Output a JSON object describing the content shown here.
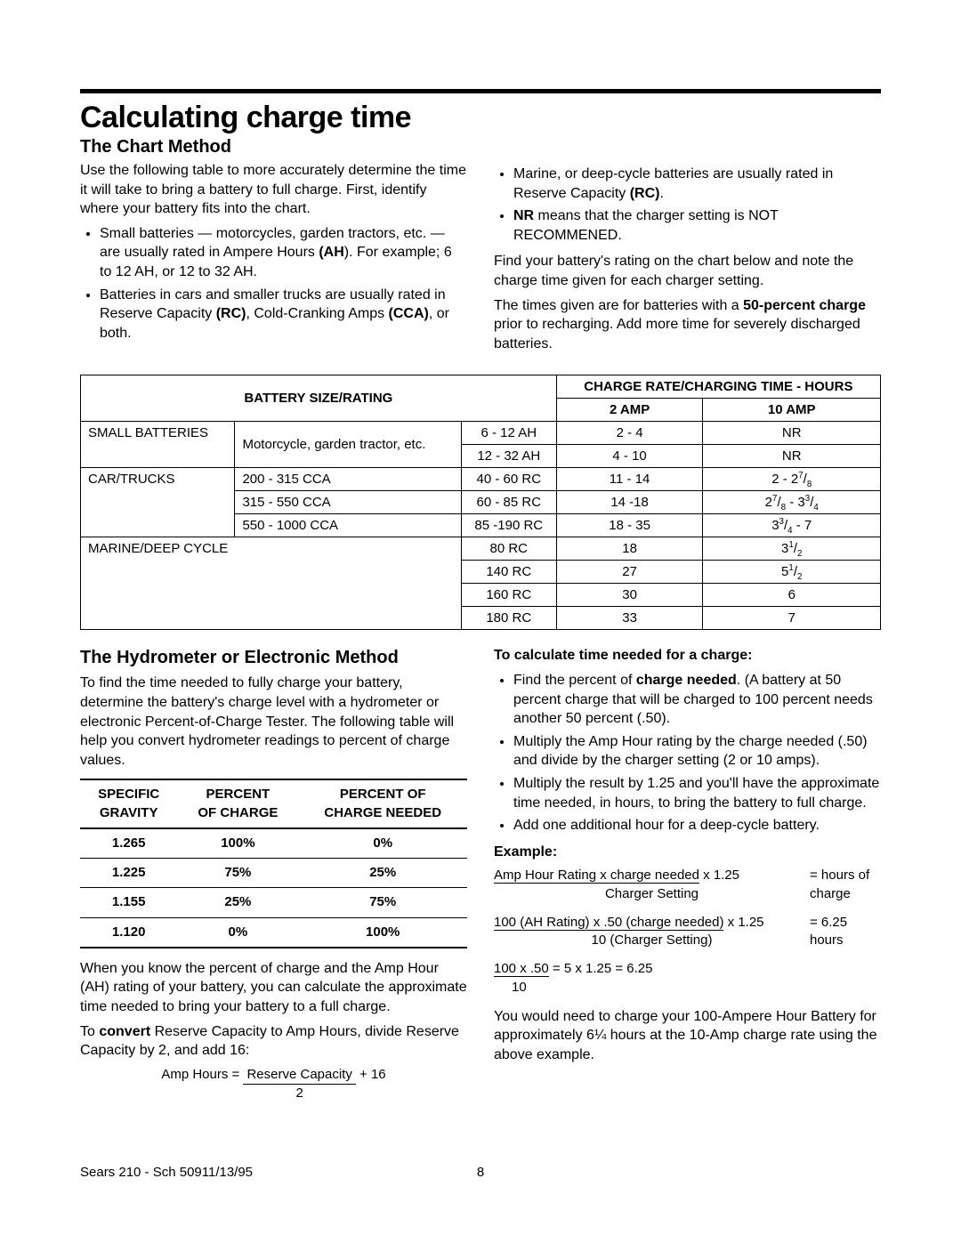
{
  "title": "Calculating charge time",
  "subtitle1": "The Chart Method",
  "intro_left_p": "Use the following table to more accurately determine the time it will take to bring a battery to full charge. First, identify where your battery fits into the chart.",
  "left_bullets": [
    "Small batteries — motorcycles, garden tractors, etc. — are usually rated in Ampere Hours (AH). For example; 6 to 12 AH, or 12 to 32 AH.",
    "Batteries in cars and smaller trucks are usually rated in Reserve Capacity (RC), Cold-Cranking Amps (CCA), or both."
  ],
  "right_bullets": [
    "Marine, or deep-cycle batteries are usually rated in Reserve Capacity (RC).",
    "NR means that the charger setting is NOT RECOMMENED."
  ],
  "right_p1": "Find your battery's rating on the chart below and note the charge time given for each charger setting.",
  "right_p2a": "The times given are for batteries with a ",
  "right_p2b": "50-percent charge",
  "right_p2c": " prior to recharging. Add more time for severely discharged batteries.",
  "charge_table": {
    "head_left": "BATTERY SIZE/RATING",
    "head_right": "CHARGE RATE/CHARGING TIME - HOURS",
    "amp2": "2 AMP",
    "amp10": "10 AMP",
    "rows": [
      {
        "cat": "SMALL BATTERIES",
        "catrows": 2,
        "desc": "Motorcycle, garden tractor, etc.",
        "descrows": 2,
        "rc": "6 - 12 AH",
        "a2": "2 - 4",
        "a10": "NR"
      },
      {
        "rc": "12 - 32 AH",
        "a2": "4 - 10",
        "a10": "NR"
      },
      {
        "cat": "CAR/TRUCKS",
        "catrows": 3,
        "desc": "200 - 315 CCA",
        "rc": "40 - 60 RC",
        "a2": "11 - 14",
        "a10": "2 - 2⅞"
      },
      {
        "desc": "315 - 550 CCA",
        "rc": "60 - 85 RC",
        "a2": "14 -18",
        "a10": "2⅞ - 3¾"
      },
      {
        "desc": "550 - 1000 CCA",
        "rc": "85 -190 RC",
        "a2": "18 - 35",
        "a10": "3¾ - 7"
      },
      {
        "cat": "MARINE/DEEP CYCLE",
        "catrows": 4,
        "catcols": 2,
        "rc": "80 RC",
        "a2": "18",
        "a10": "3½"
      },
      {
        "rc": "140 RC",
        "a2": "27",
        "a10": "5½"
      },
      {
        "rc": "160 RC",
        "a2": "30",
        "a10": "6"
      },
      {
        "rc": "180 RC",
        "a2": "33",
        "a10": "7"
      }
    ]
  },
  "subtitle2": "The Hydrometer or Electronic Method",
  "hydro_p": "To find the time needed to fully charge your battery, determine the battery's charge level with a hydrometer or electronic Percent-of-Charge Tester. The following table will help you convert hydrometer readings to percent of charge values.",
  "hydro_table": {
    "h1a": "SPECIFIC",
    "h1b": "GRAVITY",
    "h2a": "PERCENT",
    "h2b": "OF CHARGE",
    "h3a": "PERCENT OF",
    "h3b": "CHARGE NEEDED",
    "rows": [
      {
        "sg": "1.265",
        "pc": "100%",
        "pn": "0%"
      },
      {
        "sg": "1.225",
        "pc": "75%",
        "pn": "25%"
      },
      {
        "sg": "1.155",
        "pc": "25%",
        "pn": "75%"
      },
      {
        "sg": "1.120",
        "pc": "0%",
        "pn": "100%"
      }
    ]
  },
  "hydro_after_p": "When you know the percent of charge and the Amp Hour (AH) rating of your battery, you can calculate the approximate time needed to bring your battery to a full charge.",
  "convert_p_a": "To ",
  "convert_p_b": "convert",
  "convert_p_c": " Reserve Capacity to Amp Hours, divide Reserve Capacity by 2, and add 16:",
  "formula_num": "Reserve Capacity",
  "formula_den": "2",
  "formula_pre": "Amp Hours = ",
  "formula_post": "  + 16",
  "calc_head": "To calculate time needed for a charge:",
  "calc_bullets": [
    "Find the percent of charge needed. (A battery at 50 percent charge that will be charged to 100 percent needs another 50 percent (.50).",
    "Multiply the Amp Hour rating by the charge needed (.50) and divide by the charger setting (2 or 10 amps).",
    "Multiply the result by 1.25 and you'll have the approximate time needed, in hours, to bring the battery to full charge.",
    "Add one additional hour for a deep-cycle battery."
  ],
  "example_label": "Example:",
  "ex1_num": "Amp Hour Rating x charge needed",
  "ex1_after": " x 1.25 ",
  "ex1_eq": "= hours of charge",
  "ex1_den": "Charger Setting",
  "ex2_num": "100 (AH Rating) x .50 (charge needed)",
  "ex2_after": " x 1.25 ",
  "ex2_eq": "= 6.25 hours",
  "ex2_den": "10 (Charger Setting)",
  "ex3_num": "100 x .50",
  "ex3_after": " = 5 x 1.25 = 6.25",
  "ex3_den": "10",
  "closing_p": "You would need to charge your 100-Ampere Hour Battery for approximately 6¼ hours at the 10-Amp charge rate using the above example.",
  "page_number": "8",
  "footer_left": "Sears 210 - Sch 50911/13/95"
}
